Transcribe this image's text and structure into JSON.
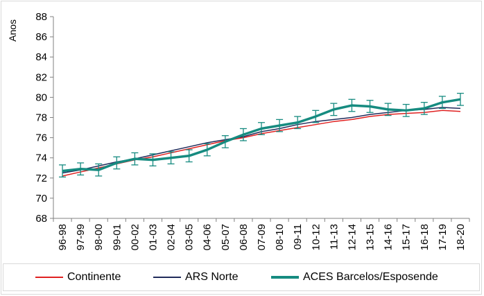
{
  "chart_data": {
    "type": "line",
    "ylabel": "Anos",
    "ylim": [
      68,
      88
    ],
    "yticks": [
      68,
      70,
      72,
      74,
      76,
      78,
      80,
      82,
      84,
      86,
      88
    ],
    "categories": [
      "96-98",
      "97-99",
      "98-00",
      "99-01",
      "00-02",
      "01-03",
      "02-04",
      "03-05",
      "04-06",
      "05-07",
      "06-08",
      "07-09",
      "08-10",
      "09-11",
      "10-12",
      "11-13",
      "12-14",
      "13-15",
      "14-16",
      "15-17",
      "16-18",
      "17-19",
      "18-20"
    ],
    "series": [
      {
        "name": "Continente",
        "color": "#e02020",
        "values": [
          72.2,
          72.6,
          73.0,
          73.4,
          73.8,
          74.1,
          74.5,
          74.9,
          75.3,
          75.7,
          76.0,
          76.4,
          76.7,
          77.0,
          77.3,
          77.6,
          77.8,
          78.1,
          78.3,
          78.4,
          78.5,
          78.7,
          78.6
        ]
      },
      {
        "name": "ARS Norte",
        "color": "#1f2a5a",
        "values": [
          72.5,
          72.8,
          73.2,
          73.6,
          73.9,
          74.3,
          74.7,
          75.1,
          75.5,
          75.8,
          76.1,
          76.6,
          76.9,
          77.3,
          77.6,
          77.8,
          78.0,
          78.3,
          78.5,
          78.7,
          78.8,
          79.0,
          78.9
        ]
      },
      {
        "name": "ACES Barcelos/Esposende",
        "color": "#168b80",
        "values": [
          72.7,
          72.9,
          72.8,
          73.5,
          73.9,
          73.8,
          74.0,
          74.2,
          74.8,
          75.6,
          76.3,
          76.9,
          77.2,
          77.5,
          78.1,
          78.8,
          79.2,
          79.1,
          78.8,
          78.7,
          78.9,
          79.5,
          79.8
        ],
        "error_lower": [
          72.1,
          72.3,
          72.2,
          72.9,
          73.3,
          73.2,
          73.4,
          73.6,
          74.2,
          75.0,
          75.7,
          76.3,
          76.6,
          76.9,
          77.5,
          78.2,
          78.6,
          78.5,
          78.2,
          78.1,
          78.3,
          78.9,
          79.2
        ],
        "error_upper": [
          73.3,
          73.5,
          73.4,
          74.1,
          74.5,
          74.4,
          74.6,
          74.8,
          75.4,
          76.2,
          76.9,
          77.5,
          77.8,
          78.1,
          78.7,
          79.4,
          79.8,
          79.7,
          79.4,
          79.3,
          79.5,
          80.1,
          80.4
        ]
      }
    ],
    "legend_position": "bottom",
    "grid": false
  }
}
